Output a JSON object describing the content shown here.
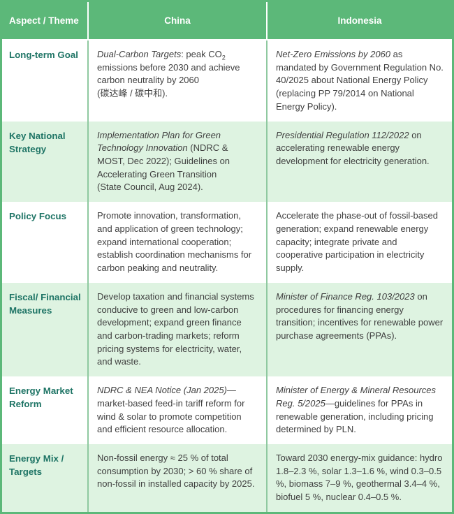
{
  "colors": {
    "header_green": "#5cb879",
    "row_tint_green": "#def3e1",
    "column_divider_green": "#8fc9a0",
    "label_teal": "#1e7465",
    "body_text": "#3f3f3f",
    "header_text": "#ffffff"
  },
  "table": {
    "header": {
      "aspect_label": "Aspect / Theme",
      "china_label": "China",
      "indonesia_label": "Indonesia"
    },
    "rows": [
      {
        "label": "Long-term Goal",
        "china": [
          {
            "t": "Dual-Carbon Targets",
            "i": true
          },
          {
            "t": ": peak CO"
          },
          {
            "t": "2",
            "sub": true
          },
          {
            "t": " emissions before 2030 and achieve carbon neutrality by 2060\n(碳达峰 / 碳中和)."
          }
        ],
        "indonesia": [
          {
            "t": "Net-Zero Emissions by 2060",
            "i": true
          },
          {
            "t": " as mandated by Government Regulation No. 40/2025 about National Energy Policy (replacing PP 79/2014 on National Energy Policy)."
          }
        ]
      },
      {
        "label": "Key National Strategy",
        "china": [
          {
            "t": "Implementation Plan for Green Technology Innovation",
            "i": true
          },
          {
            "t": " (NDRC & MOST, Dec 2022); Guidelines on Accelerating Green Transition\n(State Council, Aug 2024)."
          }
        ],
        "indonesia": [
          {
            "t": "Presidential Regulation 112/2022",
            "i": true
          },
          {
            "t": " on accelerating renewable energy development for electricity generation."
          }
        ]
      },
      {
        "label": "Policy Focus",
        "china": [
          {
            "t": "Promote innovation, transformation, and application of green technology; expand international cooperation; establish coordination mechanisms for carbon peaking and neutrality."
          }
        ],
        "indonesia": [
          {
            "t": "Accelerate the phase-out of fossil-based generation; expand renewable energy capacity; integrate private and cooperative participation in electricity supply."
          }
        ]
      },
      {
        "label": "Fiscal/ Financial Measures",
        "china": [
          {
            "t": "Develop taxation and financial systems conducive to green and low-carbon development; expand green finance and carbon-trading markets; reform pricing systems for electricity, water, and waste."
          }
        ],
        "indonesia": [
          {
            "t": "Minister of Finance Reg. 103/2023",
            "i": true
          },
          {
            "t": " on procedures for financing energy transition; incentives for renewable power purchase agreements (PPAs)."
          }
        ]
      },
      {
        "label": "Energy Market Reform",
        "china": [
          {
            "t": "NDRC & NEA Notice (Jan 2025)",
            "i": true
          },
          {
            "t": "—market-based feed-in tariff reform for wind & solar to promote competition and efficient resource allocation."
          }
        ],
        "indonesia": [
          {
            "t": "Minister of Energy & Mineral Resources Reg. 5/2025",
            "i": true
          },
          {
            "t": "—guidelines for PPAs in renewable generation, including pricing determined by PLN."
          }
        ]
      },
      {
        "label": "Energy Mix / Targets",
        "china": [
          {
            "t": "Non-fossil energy ≈ 25 % of total consumption by 2030; > 60 % share of non-fossil in installed capacity by 2025."
          }
        ],
        "indonesia": [
          {
            "t": "Toward 2030 energy-mix guidance: hydro 1.8–2.3 %, solar 1.3–1.6 %, wind 0.3–0.5 %, biomass 7–9 %, geothermal 3.4–4 %, biofuel 5 %, nuclear 0.4–0.5 %."
          }
        ]
      }
    ]
  }
}
